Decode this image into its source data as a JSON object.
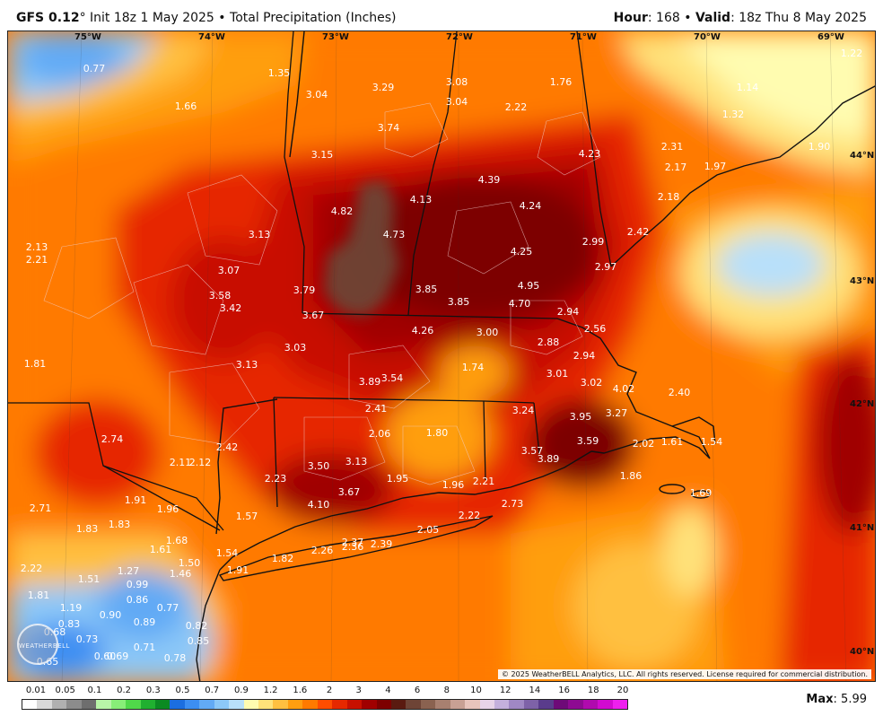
{
  "header": {
    "model": "GFS 0.12",
    "degree": "°",
    "init": " Init 18z 1 May 2025",
    "bullet": " • ",
    "product": "Total Precipitation (Inches)",
    "hour_label": "Hour",
    "hour_value": ": 168",
    "valid_label": "Valid",
    "valid_value": ": 18z Thu 8 May 2025"
  },
  "copyright": "© 2025 WeatherBELL Analytics, LLC. All rights reserved. License required for commercial distribution.",
  "logo_text": "WEATHERBELL",
  "longitudes": [
    "75°W",
    "74°W",
    "73°W",
    "72°W",
    "71°W",
    "70°W",
    "69°W"
  ],
  "latitudes": [
    "44°N",
    "43°N",
    "42°N",
    "41°N",
    "40°N"
  ],
  "values": [
    "0.77",
    "1.35",
    "3.04",
    "3.29",
    "3.08",
    "3.04",
    "1.76",
    "1.14",
    "1.22",
    "1.32",
    "1.66",
    "2.22",
    "3.74",
    "4.23",
    "2.31",
    "1.90",
    "3.15",
    "2.17",
    "1.97",
    "4.39",
    "4.13",
    "4.24",
    "2.18",
    "4.82",
    "4.73",
    "2.13",
    "2.21",
    "3.13",
    "2.99",
    "2.42",
    "4.25",
    "3.07",
    "2.97",
    "4.95",
    "3.85",
    "3.85",
    "3.79",
    "3.58",
    "3.42",
    "4.70",
    "3.67",
    "2.94",
    "4.26",
    "3.00",
    "2.56",
    "2.88",
    "3.03",
    "2.94",
    "1.81",
    "3.13",
    "1.74",
    "3.01",
    "3.89",
    "3.54",
    "3.02",
    "4.02",
    "2.40",
    "2.41",
    "3.24",
    "3.95",
    "3.27",
    "2.06",
    "1.80",
    "2.74",
    "3.59",
    "2.02",
    "1.61",
    "1.54",
    "2.42",
    "2.11",
    "2.12",
    "3.57",
    "3.89",
    "3.50",
    "3.13",
    "1.95",
    "2.23",
    "1.96",
    "2.21",
    "1.86",
    "3.67",
    "1.69",
    "2.71",
    "1.91",
    "1.96",
    "4.10",
    "1.57",
    "2.73",
    "2.22",
    "1.83",
    "1.83",
    "2.05",
    "1.61",
    "1.68",
    "2.37",
    "2.39",
    "1.54",
    "1.82",
    "2.26",
    "2.36",
    "2.22",
    "1.50",
    "1.91",
    "1.27",
    "1.46",
    "1.51",
    "0.99",
    "1.81",
    "0.86",
    "1.19",
    "0.77",
    "0.90",
    "0.89",
    "0.83",
    "0.82",
    "0.68",
    "0.73",
    "0.85",
    "0.71",
    "0.65",
    "0.60",
    "0.69",
    "0.78"
  ],
  "legend": {
    "ticks": [
      "0.01",
      "0.05",
      "0.1",
      "0.2",
      "0.3",
      "0.5",
      "0.7",
      "0.9",
      "1.2",
      "1.6",
      "2",
      "3",
      "4",
      "6",
      "8",
      "10",
      "12",
      "14",
      "16",
      "18",
      "20"
    ],
    "colors": [
      "#ffffff",
      "#d9d9d9",
      "#b0b0b0",
      "#8c8c8c",
      "#6e6e6e",
      "#b8f5a8",
      "#88ee78",
      "#50d84a",
      "#20b030",
      "#0b8a22",
      "#1b6ee0",
      "#3c8ef2",
      "#62aaf5",
      "#8cc8f8",
      "#b8e0fa",
      "#fffcb0",
      "#ffe27a",
      "#ffc040",
      "#ff9e10",
      "#ff7a00",
      "#ff4d00",
      "#e62800",
      "#c81000",
      "#a00000",
      "#7d0000",
      "#5a1a10",
      "#6e4436",
      "#8a6250",
      "#a88070",
      "#c8a094",
      "#e8c4bc",
      "#e8d4e8",
      "#c4b0dc",
      "#a088c4",
      "#7e62a8",
      "#5a3c8c",
      "#6e0a78",
      "#8e0a92",
      "#b00aae",
      "#d20ad0",
      "#ee20ee"
    ]
  },
  "max_label": "Max",
  "max_value": ": 5.99"
}
